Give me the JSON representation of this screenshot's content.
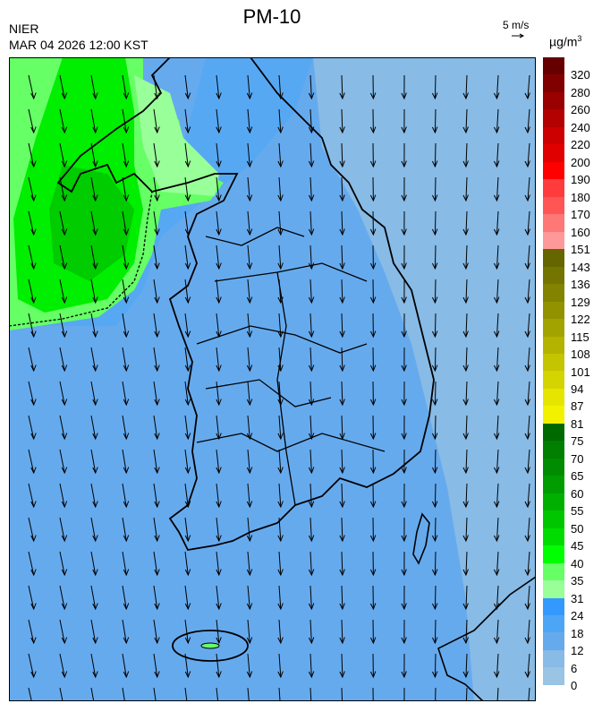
{
  "header": {
    "title": "PM-10",
    "organization": "NIER",
    "timestamp": "MAR 04 2026 12:00 KST",
    "wind_scale_label": "5 m/s",
    "unit": "µg/m",
    "unit_superscript": "3"
  },
  "map": {
    "variable": "PM-10 concentration with wind vectors",
    "wind_direction": "north-northwesterly (arrows point south)",
    "colors": {
      "sea_east": "#88bbe6",
      "base": "#66aaee",
      "coast_blue": "#4da6f5",
      "green_high": "#00dd00",
      "green_mid": "#00ff00",
      "green_low": "#66ff66",
      "green_lowest": "#99ff99",
      "green_core": "#00bb00"
    }
  },
  "legend": {
    "labels": [
      "320",
      "280",
      "260",
      "240",
      "220",
      "200",
      "190",
      "180",
      "170",
      "160",
      "151",
      "143",
      "136",
      "129",
      "122",
      "115",
      "108",
      "101",
      "94",
      "87",
      "81",
      "75",
      "70",
      "65",
      "60",
      "55",
      "50",
      "45",
      "40",
      "35",
      "31",
      "24",
      "18",
      "12",
      "6",
      "0"
    ],
    "colors": [
      "#660000",
      "#800000",
      "#990000",
      "#b30000",
      "#cc0000",
      "#e00000",
      "#ff0000",
      "#ff3b3b",
      "#ff5555",
      "#ff7777",
      "#ff9999",
      "#666600",
      "#747400",
      "#838300",
      "#929200",
      "#a3a300",
      "#b3b300",
      "#c4c400",
      "#d4d400",
      "#e5e500",
      "#f2f200",
      "#006a00",
      "#007f00",
      "#008c00",
      "#009c00",
      "#00b000",
      "#00c600",
      "#00dc00",
      "#00ff00",
      "#66ff66",
      "#99ff99",
      "#3399ff",
      "#4da6f5",
      "#66aaee",
      "#88bbe6",
      "#99c4e3"
    ]
  }
}
